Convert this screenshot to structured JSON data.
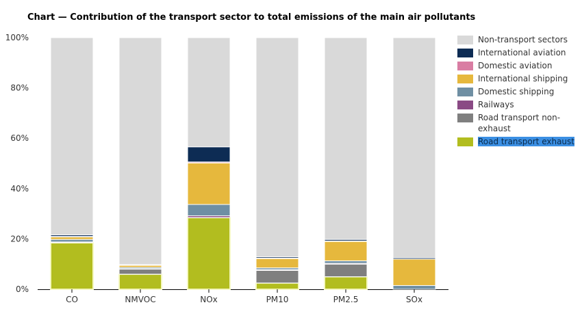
{
  "chart_data": {
    "type": "bar",
    "stacked": true,
    "title": "Chart — Contribution of the transport sector to total emissions of the main air pollutants",
    "xlabel": "",
    "ylabel": "",
    "ylim": [
      0,
      100
    ],
    "y_ticks": [
      "0%",
      "20%",
      "40%",
      "60%",
      "80%",
      "100%"
    ],
    "categories": [
      "CO",
      "NMVOC",
      "NOx",
      "PM10",
      "PM2.5",
      "SOx"
    ],
    "series": [
      {
        "name": "Road transport exhaust",
        "color": "#b2bd1f",
        "values": [
          18.5,
          6.0,
          28.5,
          2.5,
          5.0,
          0.0
        ]
      },
      {
        "name": "Road transport non-exhaust",
        "color": "#7f7f7f",
        "values": [
          0.0,
          2.0,
          0.0,
          5.0,
          5.0,
          0.0
        ]
      },
      {
        "name": "Railways",
        "color": "#8a4a85",
        "values": [
          0.3,
          0.2,
          0.7,
          0.3,
          0.3,
          0.0
        ]
      },
      {
        "name": "Domestic shipping",
        "color": "#6f8fa3",
        "values": [
          1.0,
          0.5,
          4.5,
          0.7,
          1.0,
          1.5
        ]
      },
      {
        "name": "International shipping",
        "color": "#e6b83d",
        "values": [
          1.0,
          0.8,
          16.5,
          3.7,
          7.7,
          10.5
        ]
      },
      {
        "name": "Domestic aviation",
        "color": "#d97da3",
        "values": [
          0.2,
          0.1,
          0.4,
          0.2,
          0.2,
          0.0
        ]
      },
      {
        "name": "International aviation",
        "color": "#0d2c54",
        "values": [
          0.6,
          0.2,
          6.0,
          0.5,
          0.6,
          0.5
        ]
      },
      {
        "name": "Non-transport sectors",
        "color": "#d9d9d9",
        "values": [
          78.4,
          90.2,
          43.4,
          87.1,
          80.2,
          87.5
        ]
      }
    ],
    "legend_order": [
      "Non-transport sectors",
      "International aviation",
      "Domestic aviation",
      "International shipping",
      "Domestic shipping",
      "Railways",
      "Road transport non-exhaust",
      "Road transport exhaust"
    ],
    "legend_placement": "right",
    "highlighted_series": "Road transport exhaust",
    "grid": false
  }
}
